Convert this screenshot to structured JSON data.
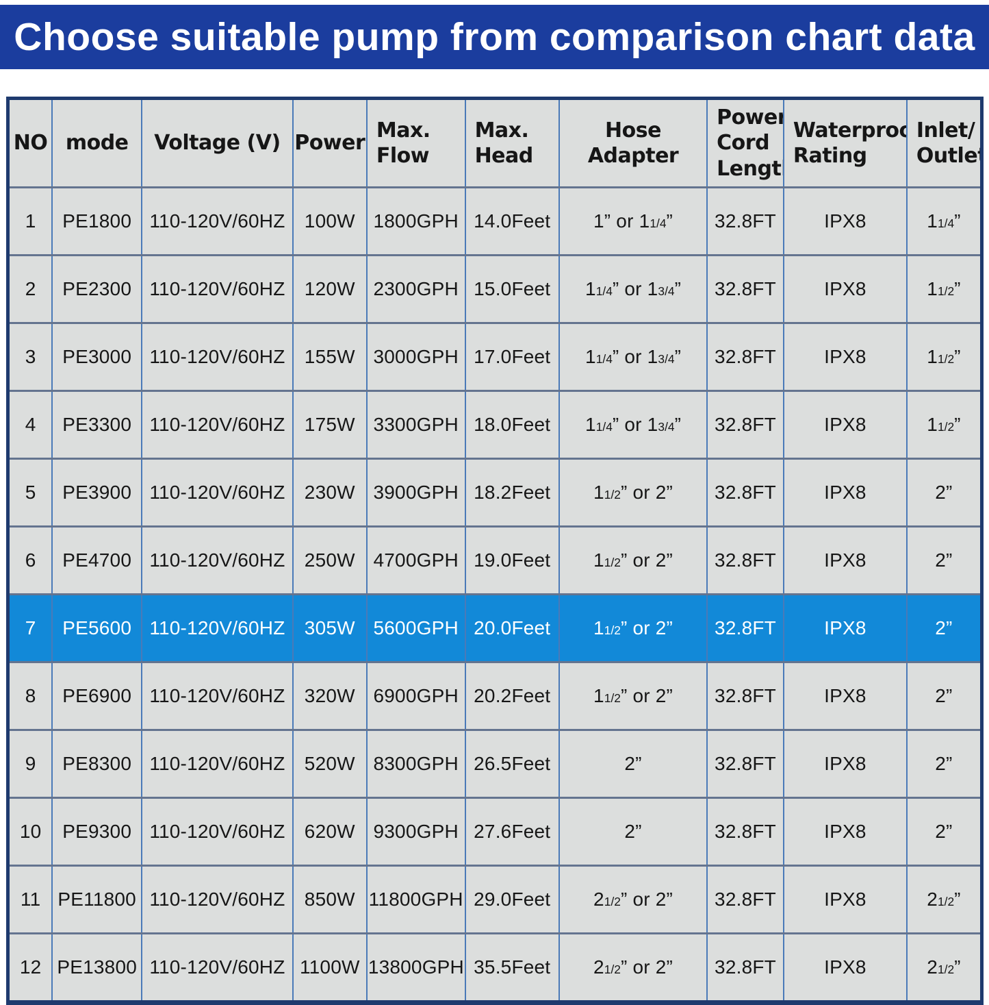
{
  "banner": {
    "title": "Choose suitable pump from comparison chart data",
    "bg_color": "#1b3d9e",
    "text_color": "#ffffff"
  },
  "table": {
    "columns": [
      {
        "key": "no",
        "label": "NO"
      },
      {
        "key": "mode",
        "label": "mode"
      },
      {
        "key": "voltage",
        "label": "Voltage (V)"
      },
      {
        "key": "power",
        "label": "Power"
      },
      {
        "key": "max_flow",
        "label": "Max.\nFlow"
      },
      {
        "key": "max_head",
        "label": "Max.\nHead"
      },
      {
        "key": "hose_adapter",
        "label": "Hose Adapter"
      },
      {
        "key": "cord_length",
        "label": "Power\nCord\nLength"
      },
      {
        "key": "waterproof",
        "label": "Waterproof\nRating"
      },
      {
        "key": "inlet_outlet",
        "label": "Inlet/\nOutlet"
      }
    ],
    "highlight_row_index": 6,
    "colors": {
      "cell_bg": "#dcdedd",
      "highlight_bg": "#1289d8",
      "highlight_text": "#ffffff",
      "outer_border": "#1e3a6e",
      "vertical_grid": "#4a7ab8",
      "horizontal_grid": "#64748f"
    },
    "rows": [
      {
        "no": "1",
        "mode": "PE1800",
        "voltage": "110-120V/60HZ",
        "power": "100W",
        "max_flow": "1800GPH",
        "max_head": "14.0Feet",
        "hose_adapter": "1” or 1{1/4}”",
        "cord_length": "32.8FT",
        "waterproof": "IPX8",
        "inlet_outlet": "1{1/4}”"
      },
      {
        "no": "2",
        "mode": "PE2300",
        "voltage": "110-120V/60HZ",
        "power": "120W",
        "max_flow": "2300GPH",
        "max_head": "15.0Feet",
        "hose_adapter": "1{1/4}” or 1{3/4}”",
        "cord_length": "32.8FT",
        "waterproof": "IPX8",
        "inlet_outlet": "1{1/2}”"
      },
      {
        "no": "3",
        "mode": "PE3000",
        "voltage": "110-120V/60HZ",
        "power": "155W",
        "max_flow": "3000GPH",
        "max_head": "17.0Feet",
        "hose_adapter": "1{1/4}” or 1{3/4}”",
        "cord_length": "32.8FT",
        "waterproof": "IPX8",
        "inlet_outlet": "1{1/2}”"
      },
      {
        "no": "4",
        "mode": "PE3300",
        "voltage": "110-120V/60HZ",
        "power": "175W",
        "max_flow": "3300GPH",
        "max_head": "18.0Feet",
        "hose_adapter": "1{1/4}” or 1{3/4}”",
        "cord_length": "32.8FT",
        "waterproof": "IPX8",
        "inlet_outlet": "1{1/2}”"
      },
      {
        "no": "5",
        "mode": "PE3900",
        "voltage": "110-120V/60HZ",
        "power": "230W",
        "max_flow": "3900GPH",
        "max_head": "18.2Feet",
        "hose_adapter": "1{1/2}” or 2”",
        "cord_length": "32.8FT",
        "waterproof": "IPX8",
        "inlet_outlet": "2”"
      },
      {
        "no": "6",
        "mode": "PE4700",
        "voltage": "110-120V/60HZ",
        "power": "250W",
        "max_flow": "4700GPH",
        "max_head": "19.0Feet",
        "hose_adapter": "1{1/2}” or 2”",
        "cord_length": "32.8FT",
        "waterproof": "IPX8",
        "inlet_outlet": "2”"
      },
      {
        "no": "7",
        "mode": "PE5600",
        "voltage": "110-120V/60HZ",
        "power": "305W",
        "max_flow": "5600GPH",
        "max_head": "20.0Feet",
        "hose_adapter": "1{1/2}” or 2”",
        "cord_length": "32.8FT",
        "waterproof": "IPX8",
        "inlet_outlet": "2”"
      },
      {
        "no": "8",
        "mode": "PE6900",
        "voltage": "110-120V/60HZ",
        "power": "320W",
        "max_flow": "6900GPH",
        "max_head": "20.2Feet",
        "hose_adapter": "1{1/2}” or 2”",
        "cord_length": "32.8FT",
        "waterproof": "IPX8",
        "inlet_outlet": "2”"
      },
      {
        "no": "9",
        "mode": "PE8300",
        "voltage": "110-120V/60HZ",
        "power": "520W",
        "max_flow": "8300GPH",
        "max_head": "26.5Feet",
        "hose_adapter": "2”",
        "cord_length": "32.8FT",
        "waterproof": "IPX8",
        "inlet_outlet": "2”"
      },
      {
        "no": "10",
        "mode": "PE9300",
        "voltage": "110-120V/60HZ",
        "power": "620W",
        "max_flow": "9300GPH",
        "max_head": "27.6Feet",
        "hose_adapter": "2”",
        "cord_length": "32.8FT",
        "waterproof": "IPX8",
        "inlet_outlet": "2”"
      },
      {
        "no": "11",
        "mode": "PE11800",
        "voltage": "110-120V/60HZ",
        "power": "850W",
        "max_flow": "11800GPH",
        "max_head": "29.0Feet",
        "hose_adapter": "2{1/2}” or 2”",
        "cord_length": "32.8FT",
        "waterproof": "IPX8",
        "inlet_outlet": "2{1/2}”"
      },
      {
        "no": "12",
        "mode": "PE13800",
        "voltage": "110-120V/60HZ",
        "power": "1100W",
        "max_flow": "13800GPH",
        "max_head": "35.5Feet",
        "hose_adapter": "2{1/2}” or 2”",
        "cord_length": "32.8FT",
        "waterproof": "IPX8",
        "inlet_outlet": "2{1/2}”"
      }
    ]
  }
}
